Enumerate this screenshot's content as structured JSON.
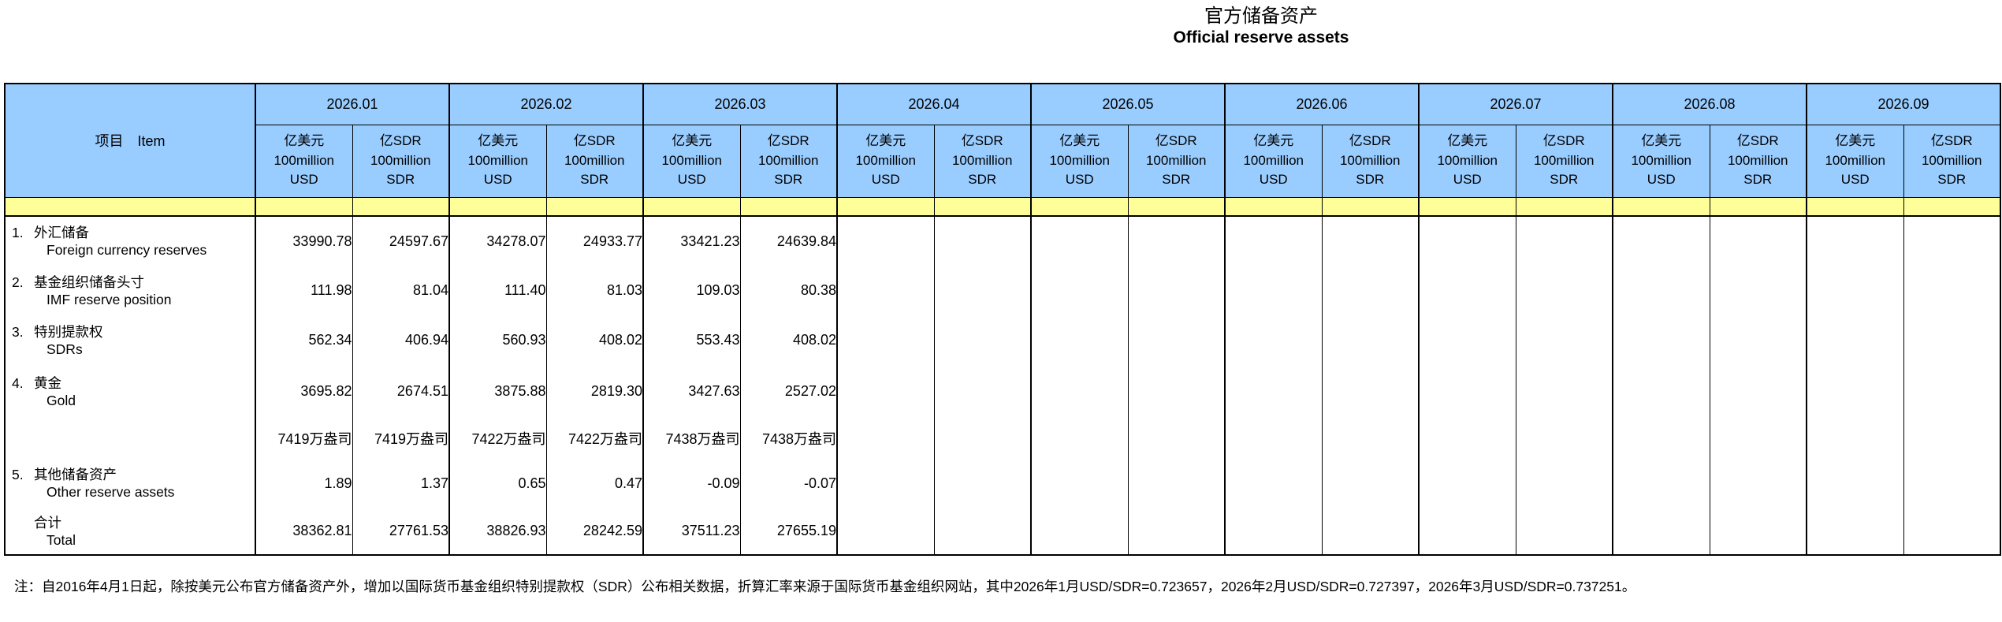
{
  "title": {
    "zh": "官方储备资产",
    "en": "Official reserve assets"
  },
  "colors": {
    "header_blue": "#99CCFF",
    "band_yellow": "#FFFF99",
    "border": "#000000"
  },
  "table": {
    "item_header": "项目　Item",
    "months": [
      "2026.01",
      "2026.02",
      "2026.03",
      "2026.04",
      "2026.05",
      "2026.06",
      "2026.07",
      "2026.08",
      "2026.09"
    ],
    "units": {
      "usd": [
        "亿美元",
        "100million",
        "USD"
      ],
      "sdr": [
        "亿SDR",
        "100million",
        "SDR"
      ]
    },
    "rows": [
      {
        "no": "1.",
        "zh": "外汇储备",
        "en": "Foreign currency reserves",
        "values": [
          "33990.78",
          "24597.67",
          "34278.07",
          "24933.77",
          "33421.23",
          "24639.84",
          "",
          "",
          "",
          "",
          "",
          "",
          "",
          "",
          "",
          "",
          "",
          ""
        ]
      },
      {
        "no": "2.",
        "zh": "基金组织储备头寸",
        "en": "IMF reserve position",
        "values": [
          "111.98",
          "81.04",
          "111.40",
          "81.03",
          "109.03",
          "80.38",
          "",
          "",
          "",
          "",
          "",
          "",
          "",
          "",
          "",
          "",
          "",
          ""
        ]
      },
      {
        "no": "3.",
        "zh": "特别提款权",
        "en": "SDRs",
        "values": [
          "562.34",
          "406.94",
          "560.93",
          "408.02",
          "553.43",
          "408.02",
          "",
          "",
          "",
          "",
          "",
          "",
          "",
          "",
          "",
          "",
          "",
          ""
        ]
      },
      {
        "no": "4.",
        "zh": "黄金",
        "en": "Gold",
        "values": [
          "3695.82",
          "2674.51",
          "3875.88",
          "2819.30",
          "3427.63",
          "2527.02",
          "",
          "",
          "",
          "",
          "",
          "",
          "",
          "",
          "",
          "",
          "",
          ""
        ]
      },
      {
        "no": "",
        "zh": "",
        "en": "",
        "ounce": true,
        "values": [
          "7419万盎司",
          "7419万盎司",
          "7422万盎司",
          "7422万盎司",
          "7438万盎司",
          "7438万盎司",
          "",
          "",
          "",
          "",
          "",
          "",
          "",
          "",
          "",
          "",
          "",
          ""
        ]
      },
      {
        "no": "5.",
        "zh": "其他储备资产",
        "en": "Other reserve assets",
        "values": [
          "1.89",
          "1.37",
          "0.65",
          "0.47",
          "-0.09",
          "-0.07",
          "",
          "",
          "",
          "",
          "",
          "",
          "",
          "",
          "",
          "",
          "",
          ""
        ]
      },
      {
        "no": "",
        "zh": "合计",
        "en": "Total",
        "total": true,
        "values": [
          "38362.81",
          "27761.53",
          "38826.93",
          "28242.59",
          "37511.23",
          "27655.19",
          "",
          "",
          "",
          "",
          "",
          "",
          "",
          "",
          "",
          "",
          "",
          ""
        ]
      }
    ]
  },
  "note": "注：自2016年4月1日起，除按美元公布官方储备资产外，增加以国际货币基金组织特别提款权（SDR）公布相关数据，折算汇率来源于国际货币基金组织网站，其中2026年1月USD/SDR=0.723657，2026年2月USD/SDR=0.727397，2026年3月USD/SDR=0.737251。"
}
